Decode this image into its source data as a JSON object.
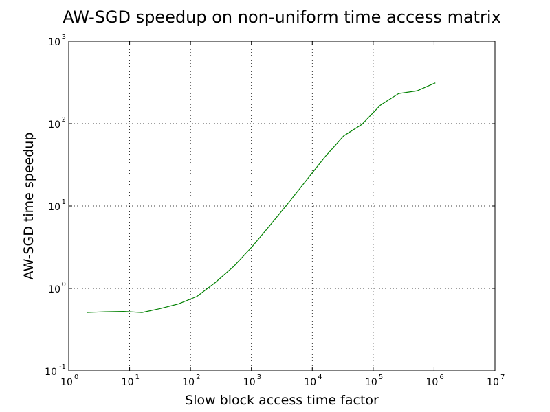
{
  "chart_data": {
    "type": "line",
    "title": "AW-SGD speedup on non-uniform time access matrix",
    "xlabel": "Slow block access time factor",
    "ylabel": "AW-SGD time speedup",
    "xscale": "log",
    "yscale": "log",
    "xlim": [
      1,
      10000000
    ],
    "ylim": [
      0.1,
      1000
    ],
    "grid": true,
    "x_ticks": [
      {
        "value": 1,
        "base": "10",
        "exp": "0"
      },
      {
        "value": 10,
        "base": "10",
        "exp": "1"
      },
      {
        "value": 100,
        "base": "10",
        "exp": "2"
      },
      {
        "value": 1000,
        "base": "10",
        "exp": "3"
      },
      {
        "value": 10000,
        "base": "10",
        "exp": "4"
      },
      {
        "value": 100000,
        "base": "10",
        "exp": "5"
      },
      {
        "value": 1000000,
        "base": "10",
        "exp": "6"
      },
      {
        "value": 10000000,
        "base": "10",
        "exp": "7"
      }
    ],
    "y_ticks": [
      {
        "value": 0.1,
        "base": "10",
        "exp": "-1"
      },
      {
        "value": 1,
        "base": "10",
        "exp": "0"
      },
      {
        "value": 10,
        "base": "10",
        "exp": "1"
      },
      {
        "value": 100,
        "base": "10",
        "exp": "2"
      },
      {
        "value": 1000,
        "base": "10",
        "exp": "3"
      }
    ],
    "series": [
      {
        "color": "#008000",
        "x": [
          2,
          4,
          8,
          16,
          32,
          64,
          128,
          256,
          512,
          1024,
          2048,
          4096,
          8192,
          16384,
          32768,
          65536,
          131072,
          262144,
          524288,
          1048576
        ],
        "y": [
          0.51,
          0.52,
          0.525,
          0.51,
          0.57,
          0.65,
          0.8,
          1.18,
          1.85,
          3.2,
          5.9,
          11.0,
          21.0,
          40.0,
          71.0,
          98.0,
          167.0,
          232.0,
          250.0,
          312.0
        ]
      }
    ]
  }
}
